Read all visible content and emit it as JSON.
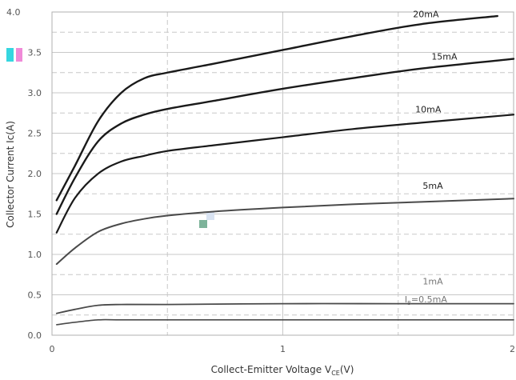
{
  "chart_data": {
    "type": "line",
    "title": "",
    "xlabel": "Collect-Emitter Voltage  V",
    "xlabel_subscript": "CE",
    "xlabel_unit": "(V)",
    "ylabel": "Collector Current  Ic(A)",
    "xlim": [
      0,
      2
    ],
    "ylim": [
      0,
      4
    ],
    "x_ticks": [
      "0",
      "1",
      "2"
    ],
    "y_ticks": [
      "0.0",
      "0.5",
      "1.0",
      "1.5",
      "2.0",
      "2.5",
      "3.0",
      "3.5",
      "4.0"
    ],
    "grid": true,
    "series": [
      {
        "name": "20mA",
        "x": [
          0.02,
          0.1,
          0.2,
          0.3,
          0.4,
          0.5,
          0.7,
          1.0,
          1.3,
          1.6,
          1.93
        ],
        "y": [
          1.67,
          2.1,
          2.65,
          3.0,
          3.18,
          3.25,
          3.36,
          3.53,
          3.7,
          3.85,
          3.95
        ]
      },
      {
        "name": "15mA",
        "x": [
          0.02,
          0.1,
          0.2,
          0.3,
          0.4,
          0.5,
          0.7,
          1.0,
          1.3,
          1.6,
          2.0
        ],
        "y": [
          1.5,
          1.95,
          2.4,
          2.62,
          2.73,
          2.8,
          2.9,
          3.05,
          3.18,
          3.3,
          3.42
        ]
      },
      {
        "name": "10mA",
        "x": [
          0.02,
          0.1,
          0.2,
          0.3,
          0.4,
          0.5,
          0.7,
          1.0,
          1.3,
          1.6,
          2.0
        ],
        "y": [
          1.27,
          1.7,
          2.0,
          2.15,
          2.22,
          2.28,
          2.35,
          2.45,
          2.55,
          2.63,
          2.73
        ]
      },
      {
        "name": "5mA",
        "x": [
          0.02,
          0.1,
          0.2,
          0.3,
          0.4,
          0.5,
          0.7,
          1.0,
          1.3,
          1.6,
          2.0
        ],
        "y": [
          0.88,
          1.08,
          1.28,
          1.38,
          1.44,
          1.48,
          1.53,
          1.58,
          1.62,
          1.65,
          1.69
        ]
      },
      {
        "name": "1mA",
        "x": [
          0.02,
          0.1,
          0.2,
          0.3,
          0.5,
          1.0,
          1.5,
          2.0
        ],
        "y": [
          0.27,
          0.32,
          0.37,
          0.38,
          0.38,
          0.39,
          0.39,
          0.39
        ]
      },
      {
        "name": "=0.5mA",
        "x": [
          0.02,
          0.1,
          0.2,
          0.3,
          0.5,
          1.0,
          1.5,
          2.0
        ],
        "y": [
          0.13,
          0.16,
          0.19,
          0.19,
          0.19,
          0.19,
          0.19,
          0.19
        ]
      }
    ],
    "series_prefix_last": "I",
    "series_prefix_last_sub": "B"
  }
}
